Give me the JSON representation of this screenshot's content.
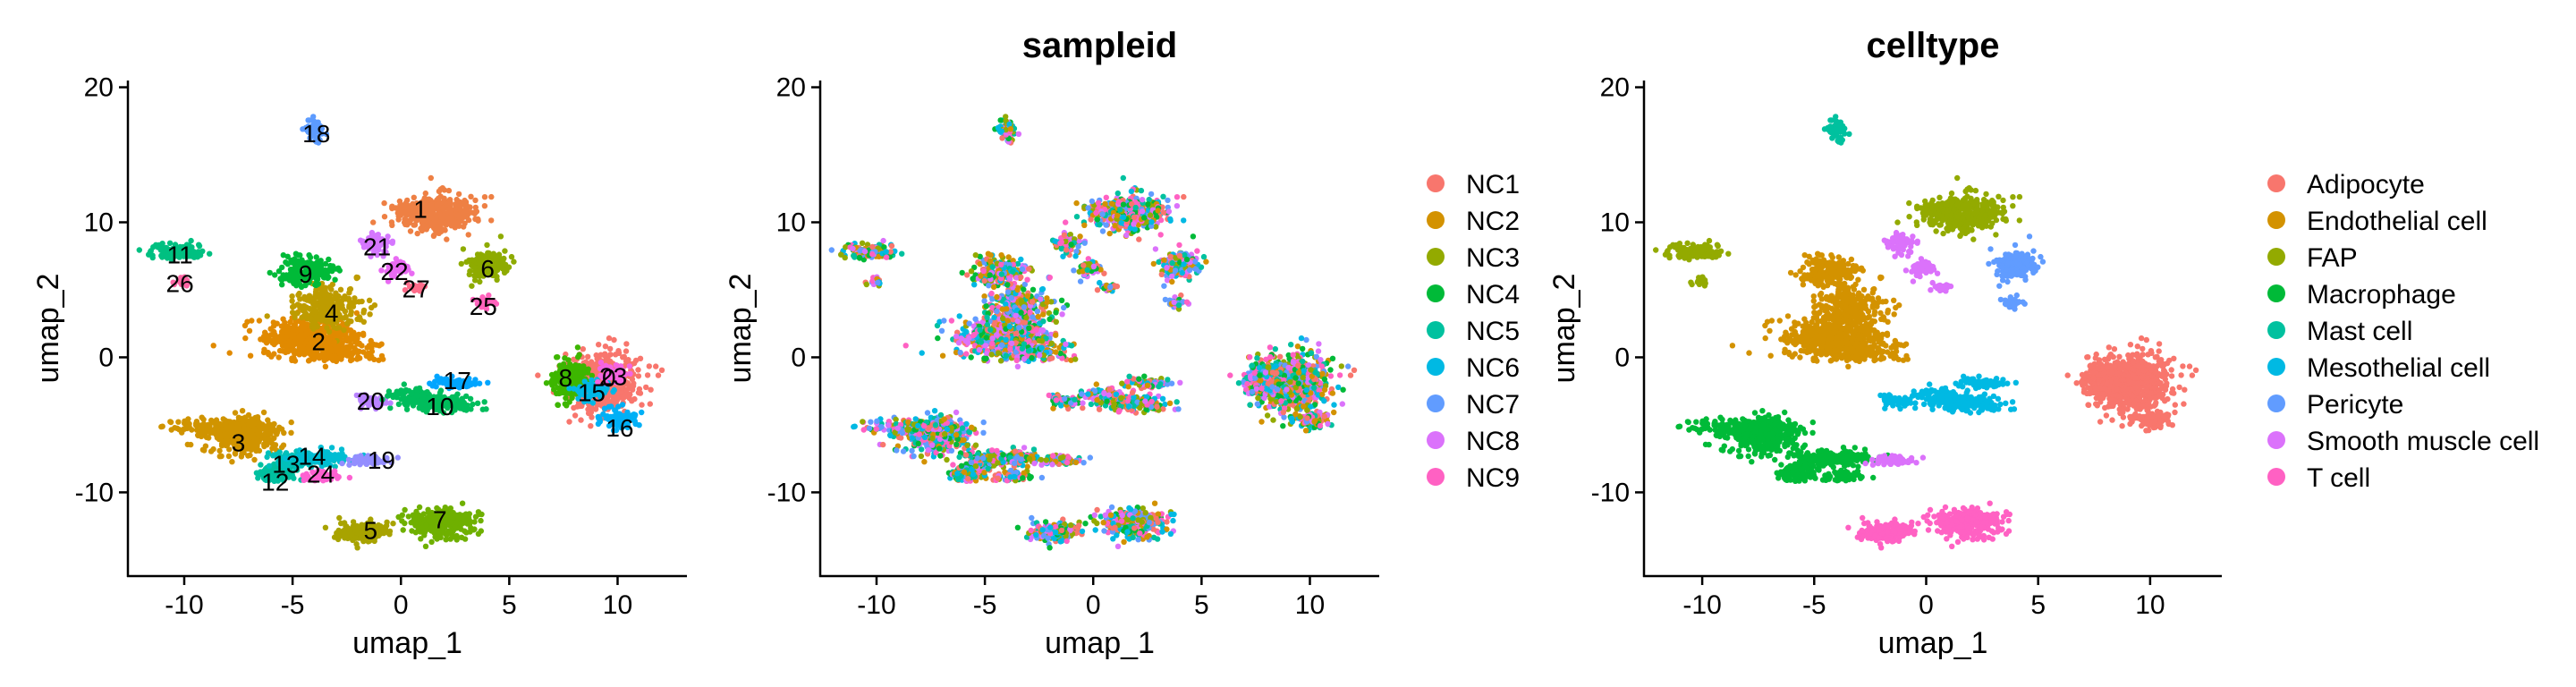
{
  "chart_data": [
    {
      "type": "scatter",
      "title": "",
      "xlabel": "umap_1",
      "ylabel": "umap_2",
      "xlim": [
        -12.6,
        13.2
      ],
      "ylim": [
        -16.2,
        20.5
      ],
      "xticks": [
        -10,
        -5,
        0,
        5,
        10
      ],
      "yticks": [
        -10,
        0,
        10,
        20
      ],
      "xtick_labels": [
        "-10",
        "-5",
        "0",
        "5",
        "10"
      ],
      "ytick_labels": [
        "-10",
        "0",
        "10",
        "20"
      ],
      "color_by": "cluster",
      "cluster_labels": [
        {
          "label": "0",
          "x": 9.6,
          "y": -1.5
        },
        {
          "label": "1",
          "x": 0.9,
          "y": 11.0
        },
        {
          "label": "2",
          "x": -3.8,
          "y": 1.2
        },
        {
          "label": "3",
          "x": -7.5,
          "y": -6.3
        },
        {
          "label": "4",
          "x": -3.2,
          "y": 3.3
        },
        {
          "label": "5",
          "x": -1.4,
          "y": -12.8
        },
        {
          "label": "6",
          "x": 4.0,
          "y": 6.6
        },
        {
          "label": "7",
          "x": 1.8,
          "y": -12.0
        },
        {
          "label": "8",
          "x": 7.6,
          "y": -1.5
        },
        {
          "label": "9",
          "x": -4.4,
          "y": 6.2
        },
        {
          "label": "10",
          "x": 1.8,
          "y": -3.6
        },
        {
          "label": "11",
          "x": -10.2,
          "y": 7.6
        },
        {
          "label": "12",
          "x": -5.8,
          "y": -9.2
        },
        {
          "label": "13",
          "x": -5.3,
          "y": -7.9
        },
        {
          "label": "14",
          "x": -4.1,
          "y": -7.3
        },
        {
          "label": "15",
          "x": 8.8,
          "y": -2.6
        },
        {
          "label": "16",
          "x": 10.1,
          "y": -5.2
        },
        {
          "label": "17",
          "x": 2.6,
          "y": -1.7
        },
        {
          "label": "18",
          "x": -3.9,
          "y": 16.6
        },
        {
          "label": "19",
          "x": -0.9,
          "y": -7.6
        },
        {
          "label": "20",
          "x": -1.4,
          "y": -3.2
        },
        {
          "label": "21",
          "x": -1.1,
          "y": 8.2
        },
        {
          "label": "22",
          "x": -0.3,
          "y": 6.4
        },
        {
          "label": "23",
          "x": 9.8,
          "y": -1.4
        },
        {
          "label": "24",
          "x": -3.7,
          "y": -8.6
        },
        {
          "label": "25",
          "x": 3.8,
          "y": 3.8
        },
        {
          "label": "26",
          "x": -10.2,
          "y": 5.5
        },
        {
          "label": "27",
          "x": 0.7,
          "y": 5.1
        }
      ]
    },
    {
      "type": "scatter",
      "title": "sampleid",
      "xlabel": "umap_1",
      "ylabel": "umap_2",
      "xlim": [
        -12.6,
        13.2
      ],
      "ylim": [
        -16.2,
        20.5
      ],
      "xticks": [
        -10,
        -5,
        0,
        5,
        10
      ],
      "yticks": [
        -10,
        0,
        10,
        20
      ],
      "xtick_labels": [
        "-10",
        "-5",
        "0",
        "5",
        "10"
      ],
      "ytick_labels": [
        "-10",
        "0",
        "10",
        "20"
      ],
      "color_by": "sampleid",
      "legend_position": "right",
      "legend": [
        "NC1",
        "NC2",
        "NC3",
        "NC4",
        "NC5",
        "NC6",
        "NC7",
        "NC8",
        "NC9"
      ],
      "legend_colors": [
        "#F8766D",
        "#D39200",
        "#93AA00",
        "#00BA38",
        "#00C19F",
        "#00B9E3",
        "#619CFF",
        "#DB72FB",
        "#FF61C3"
      ]
    },
    {
      "type": "scatter",
      "title": "celltype",
      "xlabel": "umap_1",
      "ylabel": "umap_2",
      "xlim": [
        -12.6,
        13.2
      ],
      "ylim": [
        -16.2,
        20.5
      ],
      "xticks": [
        -10,
        -5,
        0,
        5,
        10
      ],
      "yticks": [
        -10,
        0,
        10,
        20
      ],
      "xtick_labels": [
        "-10",
        "-5",
        "0",
        "5",
        "10"
      ],
      "ytick_labels": [
        "-10",
        "0",
        "10",
        "20"
      ],
      "color_by": "celltype",
      "legend_position": "right",
      "legend": [
        "Adipocyte",
        "Endothelial cell",
        "FAP",
        "Macrophage",
        "Mast cell",
        "Mesothelial cell",
        "Pericyte",
        "Smooth muscle cell",
        "T cell"
      ],
      "legend_colors": [
        "#F8766D",
        "#D39200",
        "#93AA00",
        "#00BA38",
        "#00C19F",
        "#00B9E3",
        "#619CFF",
        "#DB72FB",
        "#FF61C3"
      ]
    }
  ]
}
